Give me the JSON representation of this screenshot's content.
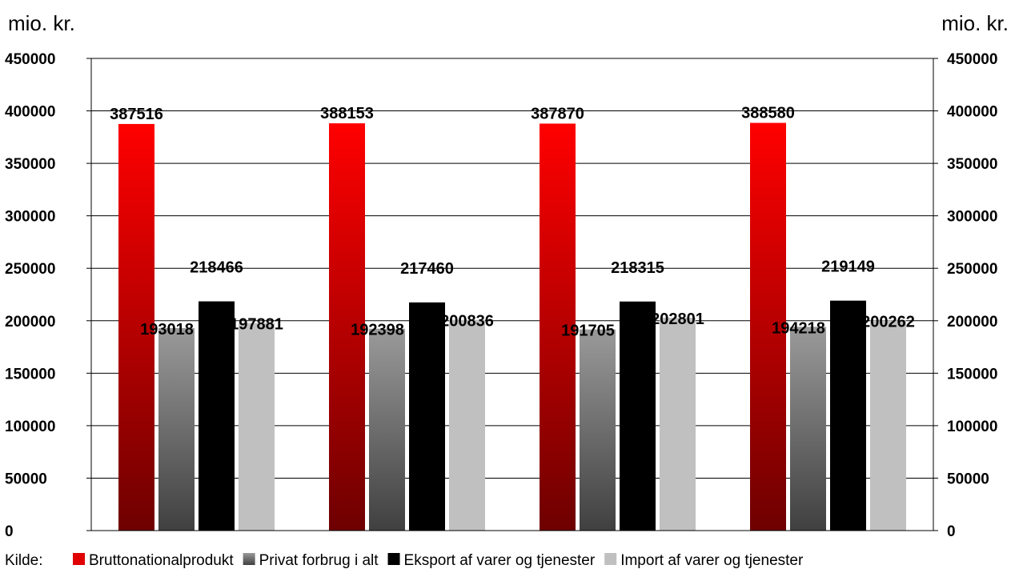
{
  "chart_data": {
    "type": "bar",
    "title": "",
    "y_unit_left": "mio. kr.",
    "y_unit_right": "mio. kr.",
    "ylim": [
      0,
      450000
    ],
    "yticks": [
      0,
      50000,
      100000,
      150000,
      200000,
      250000,
      300000,
      350000,
      400000,
      450000
    ],
    "secondary_axis": true,
    "grid": true,
    "legend_position": "bottom",
    "source_label": "Kilde:",
    "categories": [
      "",
      "",
      "",
      ""
    ],
    "series": [
      {
        "name": "Bruttonationalprodukt",
        "color": "#e00000",
        "values": [
          387516,
          388153,
          387870,
          388580
        ]
      },
      {
        "name": "Privat forbrug i alt",
        "color": "#808080",
        "values": [
          193018,
          192398,
          191705,
          194218
        ]
      },
      {
        "name": "Eksport af varer og tjenester",
        "color": "#000000",
        "values": [
          218466,
          217460,
          218315,
          219149
        ]
      },
      {
        "name": "Import af varer og tjenester",
        "color": "#c0c0c0",
        "values": [
          197881,
          200836,
          202801,
          200262
        ]
      }
    ]
  }
}
